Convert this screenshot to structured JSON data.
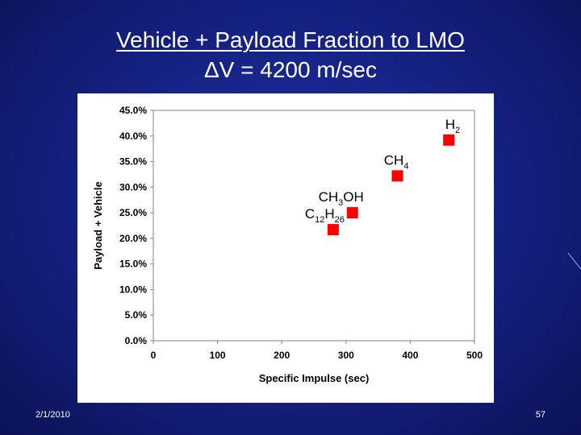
{
  "slide": {
    "title_line1": "Vehicle + Payload Fraction to LMO",
    "title_line2": "ΔV = 4200 m/sec",
    "date": "2/1/2010",
    "page": "57"
  },
  "colors": {
    "background": "#14207e",
    "marker": "#ff0000",
    "title_text": "#ffffff"
  },
  "chart_data": {
    "type": "scatter",
    "xlabel": "Specific Impulse (sec)",
    "ylabel": "Payload + Vehicle",
    "xlim": [
      0,
      500
    ],
    "ylim": [
      0,
      45
    ],
    "xticks": [
      "0",
      "100",
      "200",
      "300",
      "400",
      "500"
    ],
    "yticks": [
      "0.0%",
      "5.0%",
      "10.0%",
      "15.0%",
      "20.0%",
      "25.0%",
      "30.0%",
      "35.0%",
      "40.0%",
      "45.0%"
    ],
    "grid": false,
    "legend": "none",
    "points": [
      {
        "label_main": "C",
        "label_sub": "12",
        "label_main2": "H",
        "label_sub2": "26",
        "label_tail": "",
        "x": 280,
        "y": 21.7
      },
      {
        "label_main": "CH",
        "label_sub": "3",
        "label_main2": "OH",
        "label_sub2": "",
        "label_tail": "",
        "x": 310,
        "y": 25.0
      },
      {
        "label_main": "CH",
        "label_sub": "4",
        "label_main2": "",
        "label_sub2": "",
        "label_tail": "",
        "x": 380,
        "y": 32.2
      },
      {
        "label_main": "H",
        "label_sub": "2",
        "label_main2": "",
        "label_sub2": "",
        "label_tail": "",
        "x": 460,
        "y": 39.2
      }
    ]
  }
}
